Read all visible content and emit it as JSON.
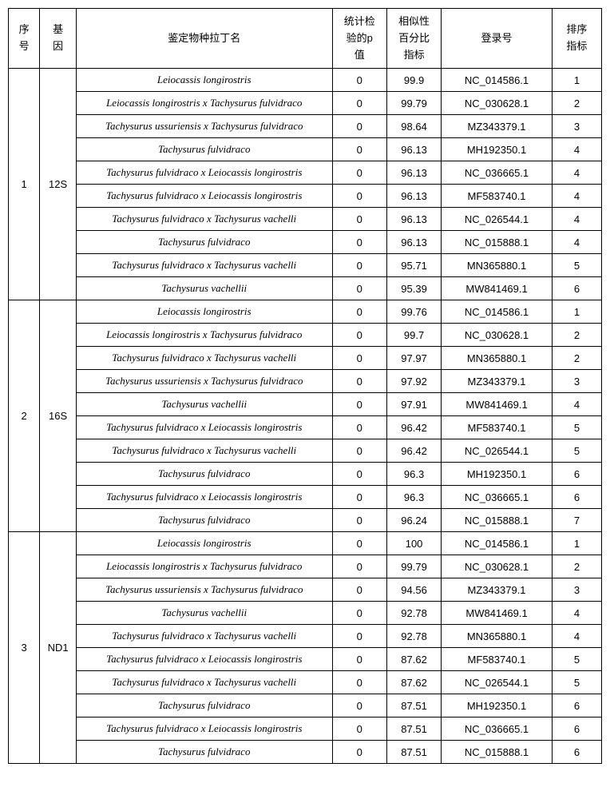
{
  "headers": {
    "seq": "序\n号",
    "gene": "基\n因",
    "species": "鉴定物种拉丁名",
    "pval": "统计检\n验的p\n值",
    "sim": "相似性\n百分比\n指标",
    "acc": "登录号",
    "rank": "排序\n指标"
  },
  "groups": [
    {
      "seq": "1",
      "gene": "12S",
      "rows": [
        {
          "species": "Leiocassis longirostris",
          "p": "0",
          "sim": "99.9",
          "acc": "NC_014586.1",
          "rank": "1"
        },
        {
          "species": "Leiocassis longirostris x Tachysurus fulvidraco",
          "p": "0",
          "sim": "99.79",
          "acc": "NC_030628.1",
          "rank": "2"
        },
        {
          "species": "Tachysurus ussuriensis x Tachysurus fulvidraco",
          "p": "0",
          "sim": "98.64",
          "acc": "MZ343379.1",
          "rank": "3"
        },
        {
          "species": "Tachysurus fulvidraco",
          "p": "0",
          "sim": "96.13",
          "acc": "MH192350.1",
          "rank": "4"
        },
        {
          "species": "Tachysurus fulvidraco x Leiocassis longirostris",
          "p": "0",
          "sim": "96.13",
          "acc": "NC_036665.1",
          "rank": "4"
        },
        {
          "species": "Tachysurus fulvidraco x Leiocassis longirostris",
          "p": "0",
          "sim": "96.13",
          "acc": "MF583740.1",
          "rank": "4"
        },
        {
          "species": "Tachysurus fulvidraco x Tachysurus vachelli",
          "p": "0",
          "sim": "96.13",
          "acc": "NC_026544.1",
          "rank": "4"
        },
        {
          "species": "Tachysurus fulvidraco",
          "p": "0",
          "sim": "96.13",
          "acc": "NC_015888.1",
          "rank": "4"
        },
        {
          "species": "Tachysurus fulvidraco x Tachysurus vachelli",
          "p": "0",
          "sim": "95.71",
          "acc": "MN365880.1",
          "rank": "5"
        },
        {
          "species": "Tachysurus vachellii",
          "p": "0",
          "sim": "95.39",
          "acc": "MW841469.1",
          "rank": "6"
        }
      ]
    },
    {
      "seq": "2",
      "gene": "16S",
      "rows": [
        {
          "species": "Leiocassis longirostris",
          "p": "0",
          "sim": "99.76",
          "acc": "NC_014586.1",
          "rank": "1"
        },
        {
          "species": "Leiocassis longirostris x Tachysurus fulvidraco",
          "p": "0",
          "sim": "99.7",
          "acc": "NC_030628.1",
          "rank": "2"
        },
        {
          "species": "Tachysurus fulvidraco x Tachysurus vachelli",
          "p": "0",
          "sim": "97.97",
          "acc": "MN365880.1",
          "rank": "2"
        },
        {
          "species": "Tachysurus ussuriensis x Tachysurus fulvidraco",
          "p": "0",
          "sim": "97.92",
          "acc": "MZ343379.1",
          "rank": "3"
        },
        {
          "species": "Tachysurus vachellii",
          "p": "0",
          "sim": "97.91",
          "acc": "MW841469.1",
          "rank": "4"
        },
        {
          "species": "Tachysurus fulvidraco x Leiocassis longirostris",
          "p": "0",
          "sim": "96.42",
          "acc": "MF583740.1",
          "rank": "5"
        },
        {
          "species": "Tachysurus fulvidraco x Tachysurus vachelli",
          "p": "0",
          "sim": "96.42",
          "acc": "NC_026544.1",
          "rank": "5"
        },
        {
          "species": "Tachysurus fulvidraco",
          "p": "0",
          "sim": "96.3",
          "acc": "MH192350.1",
          "rank": "6"
        },
        {
          "species": "Tachysurus fulvidraco x Leiocassis longirostris",
          "p": "0",
          "sim": "96.3",
          "acc": "NC_036665.1",
          "rank": "6"
        },
        {
          "species": "Tachysurus fulvidraco",
          "p": "0",
          "sim": "96.24",
          "acc": "NC_015888.1",
          "rank": "7"
        }
      ]
    },
    {
      "seq": "3",
      "gene": "ND1",
      "rows": [
        {
          "species": "Leiocassis longirostris",
          "p": "0",
          "sim": "100",
          "acc": "NC_014586.1",
          "rank": "1"
        },
        {
          "species": "Leiocassis longirostris x Tachysurus fulvidraco",
          "p": "0",
          "sim": "99.79",
          "acc": "NC_030628.1",
          "rank": "2"
        },
        {
          "species": "Tachysurus ussuriensis x Tachysurus fulvidraco",
          "p": "0",
          "sim": "94.56",
          "acc": "MZ343379.1",
          "rank": "3"
        },
        {
          "species": "Tachysurus vachellii",
          "p": "0",
          "sim": "92.78",
          "acc": "MW841469.1",
          "rank": "4"
        },
        {
          "species": "Tachysurus fulvidraco x Tachysurus vachelli",
          "p": "0",
          "sim": "92.78",
          "acc": "MN365880.1",
          "rank": "4"
        },
        {
          "species": "Tachysurus fulvidraco x Leiocassis longirostris",
          "p": "0",
          "sim": "87.62",
          "acc": "MF583740.1",
          "rank": "5"
        },
        {
          "species": "Tachysurus fulvidraco x Tachysurus vachelli",
          "p": "0",
          "sim": "87.62",
          "acc": "NC_026544.1",
          "rank": "5"
        },
        {
          "species": "Tachysurus fulvidraco",
          "p": "0",
          "sim": "87.51",
          "acc": "MH192350.1",
          "rank": "6"
        },
        {
          "species": "Tachysurus fulvidraco x Leiocassis longirostris",
          "p": "0",
          "sim": "87.51",
          "acc": "NC_036665.1",
          "rank": "6"
        },
        {
          "species": "Tachysurus fulvidraco",
          "p": "0",
          "sim": "87.51",
          "acc": "NC_015888.1",
          "rank": "6"
        }
      ]
    }
  ]
}
